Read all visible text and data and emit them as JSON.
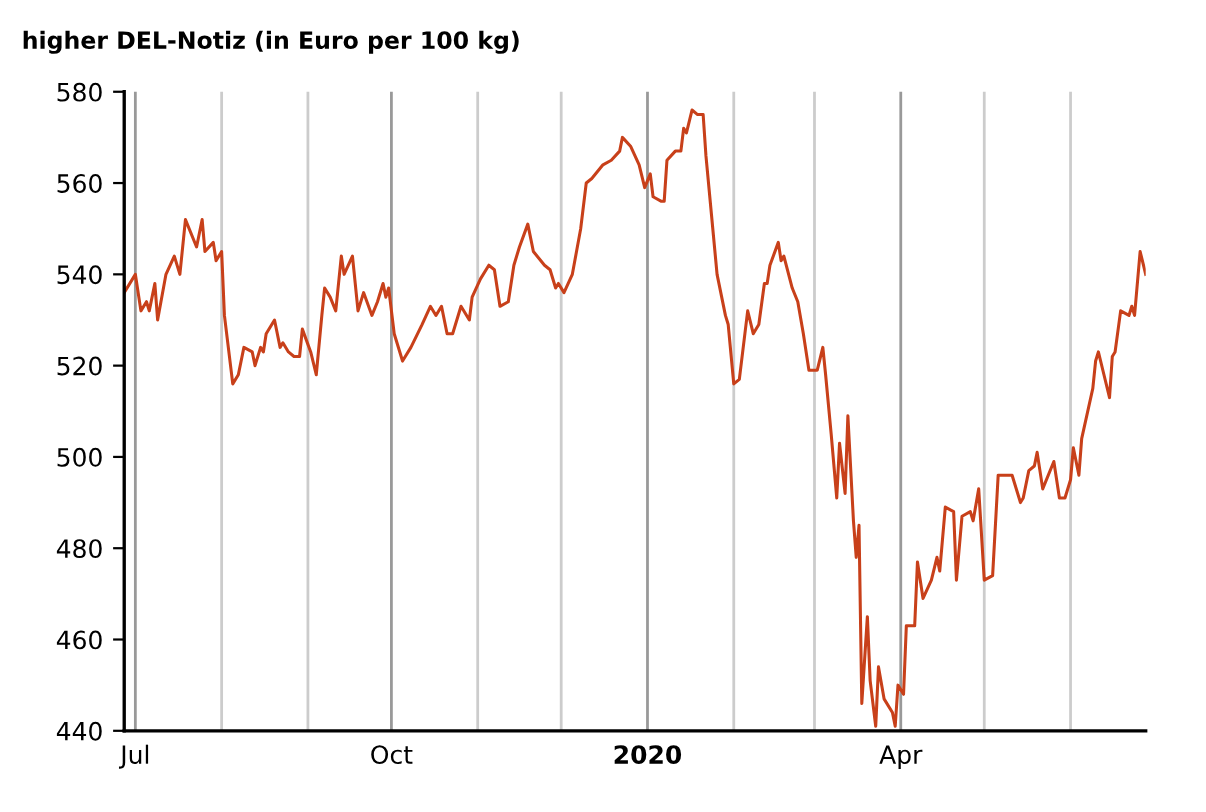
{
  "chart_data": {
    "type": "line",
    "title": "higher DEL-Notiz (in Euro per 100 kg)",
    "x": [
      "2019-06-27",
      "2019-07-01",
      "2019-07-03",
      "2019-07-05",
      "2019-07-06",
      "2019-07-08",
      "2019-07-09",
      "2019-07-12",
      "2019-07-15",
      "2019-07-17",
      "2019-07-19",
      "2019-07-23",
      "2019-07-25",
      "2019-07-26",
      "2019-07-29",
      "2019-07-30",
      "2019-08-01",
      "2019-08-02",
      "2019-08-05",
      "2019-08-07",
      "2019-08-09",
      "2019-08-12",
      "2019-08-13",
      "2019-08-15",
      "2019-08-16",
      "2019-08-17",
      "2019-08-20",
      "2019-08-22",
      "2019-08-23",
      "2019-08-25",
      "2019-08-27",
      "2019-08-29",
      "2019-08-30",
      "2019-09-02",
      "2019-09-04",
      "2019-09-06",
      "2019-09-07",
      "2019-09-09",
      "2019-09-11",
      "2019-09-13",
      "2019-09-14",
      "2019-09-17",
      "2019-09-19",
      "2019-09-21",
      "2019-09-24",
      "2019-09-26",
      "2019-09-28",
      "2019-09-29",
      "2019-09-30",
      "2019-10-02",
      "2019-10-05",
      "2019-10-08",
      "2019-10-12",
      "2019-10-15",
      "2019-10-17",
      "2019-10-19",
      "2019-10-21",
      "2019-10-23",
      "2019-10-26",
      "2019-10-29",
      "2019-10-30",
      "2019-11-02",
      "2019-11-05",
      "2019-11-07",
      "2019-11-09",
      "2019-11-12",
      "2019-11-14",
      "2019-11-16",
      "2019-11-19",
      "2019-11-21",
      "2019-11-25",
      "2019-11-27",
      "2019-11-29",
      "2019-11-30",
      "2019-12-02",
      "2019-12-05",
      "2019-12-08",
      "2019-12-10",
      "2019-12-12",
      "2019-12-16",
      "2019-12-19",
      "2019-12-22",
      "2019-12-23",
      "2019-12-26",
      "2019-12-29",
      "2019-12-31",
      "2020-01-02",
      "2020-01-03",
      "2020-01-06",
      "2020-01-07",
      "2020-01-08",
      "2020-01-11",
      "2020-01-13",
      "2020-01-14",
      "2020-01-15",
      "2020-01-17",
      "2020-01-19",
      "2020-01-21",
      "2020-01-22",
      "2020-01-24",
      "2020-01-26",
      "2020-01-29",
      "2020-01-30",
      "2020-02-01",
      "2020-02-03",
      "2020-02-05",
      "2020-02-06",
      "2020-02-08",
      "2020-02-10",
      "2020-02-12",
      "2020-02-13",
      "2020-02-14",
      "2020-02-17",
      "2020-02-18",
      "2020-02-19",
      "2020-02-22",
      "2020-02-24",
      "2020-02-26",
      "2020-02-28",
      "2020-03-02",
      "2020-03-04",
      "2020-03-05",
      "2020-03-07",
      "2020-03-09",
      "2020-03-10",
      "2020-03-12",
      "2020-03-13",
      "2020-03-15",
      "2020-03-16",
      "2020-03-17",
      "2020-03-18",
      "2020-03-20",
      "2020-03-21",
      "2020-03-23",
      "2020-03-24",
      "2020-03-26",
      "2020-03-29",
      "2020-03-30",
      "2020-03-31",
      "2020-04-02",
      "2020-04-03",
      "2020-04-06",
      "2020-04-07",
      "2020-04-09",
      "2020-04-12",
      "2020-04-14",
      "2020-04-15",
      "2020-04-17",
      "2020-04-20",
      "2020-04-21",
      "2020-04-23",
      "2020-04-26",
      "2020-04-27",
      "2020-04-29",
      "2020-05-01",
      "2020-05-04",
      "2020-05-06",
      "2020-05-09",
      "2020-05-11",
      "2020-05-14",
      "2020-05-15",
      "2020-05-17",
      "2020-05-19",
      "2020-05-20",
      "2020-05-22",
      "2020-05-26",
      "2020-05-28",
      "2020-05-30",
      "2020-06-01",
      "2020-06-02",
      "2020-06-04",
      "2020-06-05",
      "2020-06-09",
      "2020-06-10",
      "2020-06-11",
      "2020-06-13",
      "2020-06-15",
      "2020-06-16",
      "2020-06-17",
      "2020-06-19",
      "2020-06-22",
      "2020-06-23",
      "2020-06-24",
      "2020-06-26",
      "2020-06-28"
    ],
    "series": [
      {
        "color": "#c8401a",
        "values": [
          536,
          540,
          532,
          534,
          532,
          538,
          530,
          540,
          544,
          540,
          552,
          546,
          552,
          545,
          547,
          543,
          545,
          531,
          516,
          518,
          524,
          523,
          520,
          524,
          523,
          527,
          530,
          524,
          525,
          523,
          522,
          522,
          528,
          523,
          518,
          531,
          537,
          535,
          532,
          544,
          540,
          544,
          532,
          536,
          531,
          534,
          538,
          535,
          537,
          527,
          521,
          524,
          529,
          533,
          531,
          533,
          527,
          527,
          533,
          530,
          535,
          539,
          542,
          541,
          533,
          534,
          542,
          546,
          551,
          545,
          542,
          541,
          537,
          538,
          536,
          540,
          550,
          560,
          561,
          564,
          565,
          567,
          570,
          568,
          564,
          559,
          562,
          557,
          556,
          556,
          565,
          567,
          567,
          572,
          571,
          576,
          575,
          575,
          566,
          553,
          540,
          531,
          529,
          516,
          517,
          527,
          532,
          527,
          529,
          538,
          538,
          542,
          547,
          543,
          544,
          537,
          534,
          527,
          519,
          519,
          524,
          518,
          505,
          491,
          503,
          492,
          509,
          486,
          478,
          485,
          446,
          465,
          451,
          441,
          454,
          447,
          444,
          441,
          450,
          448,
          463,
          463,
          477,
          469,
          473,
          478,
          475,
          489,
          488,
          473,
          487,
          488,
          486,
          493,
          473,
          474,
          496,
          496,
          496,
          490,
          491,
          497,
          498,
          501,
          493,
          499,
          491,
          491,
          495,
          502,
          496,
          504,
          515,
          521,
          523,
          518,
          513,
          522,
          523,
          532,
          531,
          533,
          531,
          545,
          540
        ]
      }
    ],
    "xlim": [
      "2019-06-27",
      "2020-06-28"
    ],
    "xticks": [
      {
        "value": "2019-07-01",
        "label": "Jul"
      },
      {
        "value": "2019-08-01",
        "label": null
      },
      {
        "value": "2019-09-01",
        "label": null
      },
      {
        "value": "2019-10-01",
        "label": "Oct"
      },
      {
        "value": "2019-11-01",
        "label": null
      },
      {
        "value": "2019-12-01",
        "label": null
      },
      {
        "value": "2020-01-01",
        "label": "2020"
      },
      {
        "value": "2020-02-01",
        "label": null
      },
      {
        "value": "2020-03-01",
        "label": null
      },
      {
        "value": "2020-04-01",
        "label": "Apr"
      },
      {
        "value": "2020-05-01",
        "label": null
      },
      {
        "value": "2020-06-01",
        "label": null
      }
    ],
    "ylim": [
      440,
      580
    ],
    "yticks": [
      440,
      460,
      480,
      500,
      520,
      540,
      560,
      580
    ],
    "grid": "x",
    "legend": false,
    "marker": "none",
    "line_style": "solid"
  }
}
